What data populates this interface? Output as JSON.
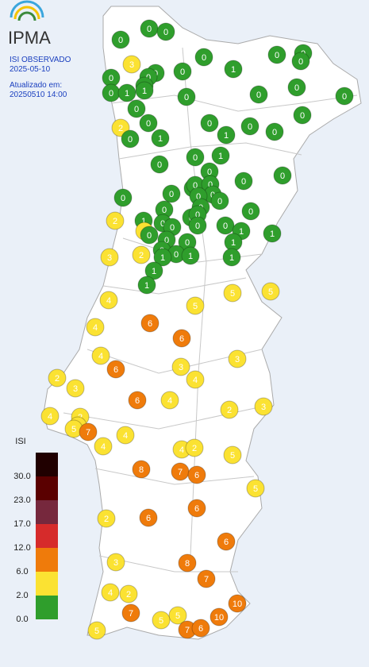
{
  "header": {
    "logo": "IPMA",
    "title": "ISI OBSERVADO",
    "date": "2025-05-10",
    "updated_label": "Atualizado em:",
    "updated": "20250510 14:00"
  },
  "legend": {
    "title": "ISI",
    "ticks": [
      {
        "value": 0,
        "label": "0.0"
      },
      {
        "value": 2,
        "label": "2.0"
      },
      {
        "value": 6,
        "label": "6.0"
      },
      {
        "value": 12,
        "label": "12.0"
      },
      {
        "value": 17,
        "label": "17.0"
      },
      {
        "value": 23,
        "label": "23.0"
      },
      {
        "value": 30,
        "label": "30.0"
      }
    ],
    "colors": [
      "#2f9e2c",
      "#fbe232",
      "#ef7b0b",
      "#d62b2b",
      "#76283d",
      "#5a0000",
      "#200000"
    ]
  },
  "stations": [
    0,
    0,
    0,
    3,
    0,
    0,
    0,
    0,
    0,
    0,
    0,
    0,
    0,
    1,
    0,
    1,
    1,
    0,
    0,
    0,
    0,
    0,
    0,
    2,
    0,
    0,
    0,
    0,
    0,
    1,
    1,
    0,
    1,
    0,
    0,
    0,
    0,
    0,
    0,
    0,
    0,
    0,
    0,
    0,
    0,
    2,
    1,
    0,
    0,
    0,
    0,
    0,
    2,
    0,
    0,
    0,
    0,
    0,
    1,
    1,
    0,
    0,
    1,
    3,
    2,
    0,
    0,
    1,
    1,
    1,
    1,
    1,
    5,
    5,
    5,
    4,
    6,
    4,
    6,
    4,
    3,
    6,
    3,
    4,
    2,
    3,
    6,
    4,
    2,
    3,
    4,
    2,
    2,
    5,
    7,
    4,
    4,
    4,
    2,
    5,
    8,
    7,
    6,
    5,
    6,
    2,
    6,
    6,
    3,
    8,
    7,
    4,
    2,
    10,
    7,
    5,
    10,
    5,
    7,
    6,
    5
  ]
}
